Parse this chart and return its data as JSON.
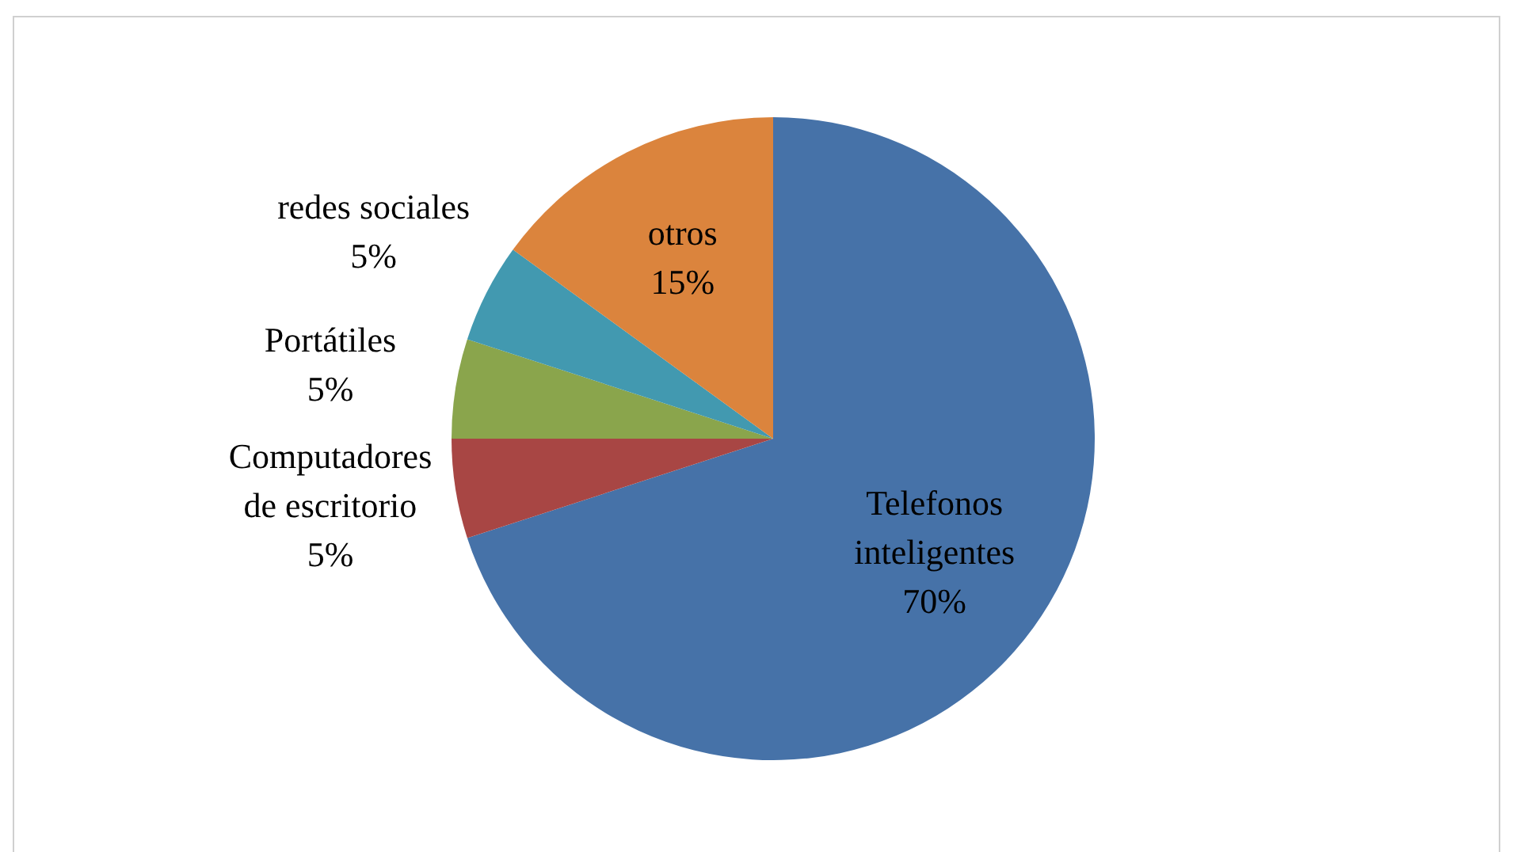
{
  "chart_data": {
    "type": "pie",
    "categories": [
      "Telefonos inteligentes",
      "Computadores de escritorio",
      "Portátiles",
      "redes sociales",
      "otros"
    ],
    "values": [
      70,
      5,
      5,
      5,
      15
    ],
    "colors": [
      "#4672a8",
      "#a84644",
      "#8aa54c",
      "#4299b0",
      "#db843d"
    ],
    "value_labels": [
      "70%",
      "5%",
      "5%",
      "5%",
      "15%"
    ]
  }
}
